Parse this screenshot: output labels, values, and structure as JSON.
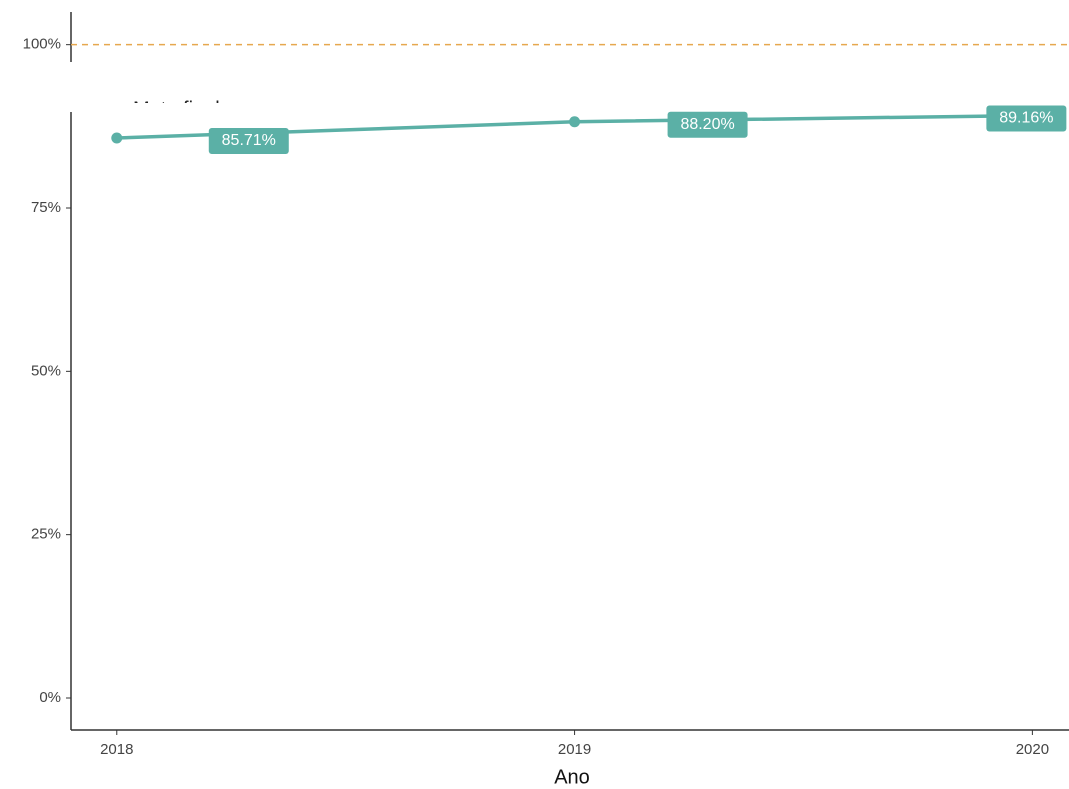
{
  "chart_data": {
    "type": "line",
    "x": [
      2018,
      2019,
      2020
    ],
    "series": [
      {
        "name": null,
        "color": "#5bb0a6",
        "values": [
          85.71,
          88.2,
          89.16
        ],
        "value_labels": [
          "85.71%",
          "88.20%",
          "89.16%"
        ]
      }
    ],
    "xlabel": "Ano",
    "xlim": [
      2017.9,
      2020.08
    ],
    "xticks": [
      2018,
      2019,
      2020
    ],
    "ylim": [
      -4.9,
      105
    ],
    "yticks": [
      {
        "value": 0,
        "label": "0%"
      },
      {
        "value": 25,
        "label": "25%"
      },
      {
        "value": 50,
        "label": "50%"
      },
      {
        "value": 75,
        "label": "75%"
      },
      {
        "value": 100,
        "label": "100%"
      }
    ],
    "reference_line": {
      "value": 100,
      "color": "#e6a84f",
      "label": "Meta final"
    },
    "grid": false
  }
}
